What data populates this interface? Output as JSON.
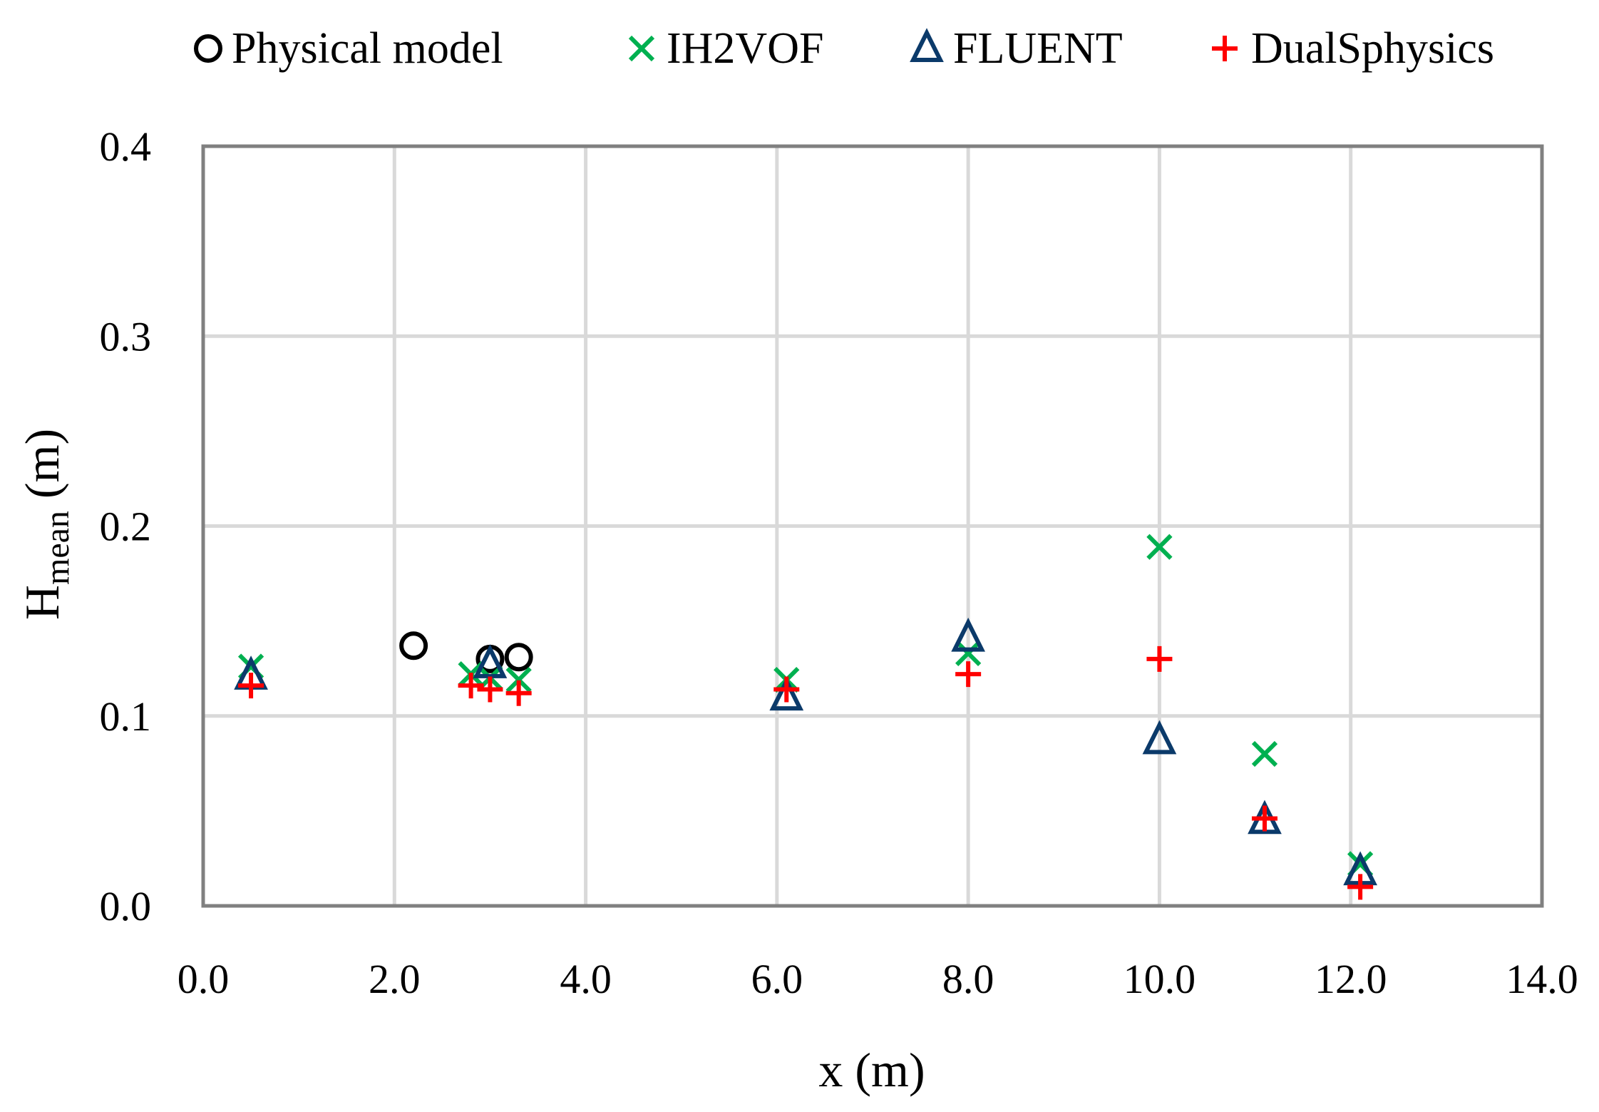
{
  "chart_data": {
    "type": "scatter",
    "title": "",
    "xlabel": "x (m)",
    "ylabel_main": "H",
    "ylabel_sub": "mean",
    "ylabel_unit": "(m)",
    "xlim": [
      0,
      14
    ],
    "ylim": [
      0,
      0.4
    ],
    "xticks": [
      0,
      2,
      4,
      6,
      8,
      10,
      12,
      14
    ],
    "yticks": [
      0,
      0.1,
      0.2,
      0.3,
      0.4
    ],
    "xtick_labels": [
      "0.0",
      "2.0",
      "4.0",
      "6.0",
      "8.0",
      "10.0",
      "12.0",
      "14.0"
    ],
    "ytick_labels": [
      "0.0",
      "0.1",
      "0.2",
      "0.3",
      "0.4"
    ],
    "grid": true,
    "legend_position": "top",
    "series": [
      {
        "name": "Physical model",
        "marker": "circle",
        "color": "#000000",
        "points": [
          {
            "x": 2.2,
            "y": 0.137
          },
          {
            "x": 3.0,
            "y": 0.13
          },
          {
            "x": 3.3,
            "y": 0.131
          }
        ]
      },
      {
        "name": "IH2VOF",
        "marker": "x",
        "color": "#00b050",
        "points": [
          {
            "x": 0.5,
            "y": 0.126
          },
          {
            "x": 2.8,
            "y": 0.122
          },
          {
            "x": 3.0,
            "y": 0.12
          },
          {
            "x": 3.3,
            "y": 0.119
          },
          {
            "x": 6.1,
            "y": 0.119
          },
          {
            "x": 8.0,
            "y": 0.133
          },
          {
            "x": 10.0,
            "y": 0.189
          },
          {
            "x": 11.1,
            "y": 0.08
          },
          {
            "x": 12.1,
            "y": 0.022
          }
        ]
      },
      {
        "name": "FLUENT",
        "marker": "triangle",
        "color": "#0b3a6a",
        "points": [
          {
            "x": 0.5,
            "y": 0.121
          },
          {
            "x": 3.0,
            "y": 0.127
          },
          {
            "x": 6.1,
            "y": 0.11
          },
          {
            "x": 8.0,
            "y": 0.141
          },
          {
            "x": 10.0,
            "y": 0.087
          },
          {
            "x": 11.1,
            "y": 0.045
          },
          {
            "x": 12.1,
            "y": 0.018
          }
        ]
      },
      {
        "name": "DualSphysics",
        "marker": "plus",
        "color": "#ff0000",
        "points": [
          {
            "x": 0.5,
            "y": 0.116
          },
          {
            "x": 2.8,
            "y": 0.116
          },
          {
            "x": 3.0,
            "y": 0.114
          },
          {
            "x": 3.3,
            "y": 0.112
          },
          {
            "x": 6.1,
            "y": 0.114
          },
          {
            "x": 8.0,
            "y": 0.122
          },
          {
            "x": 10.0,
            "y": 0.13
          },
          {
            "x": 11.1,
            "y": 0.046
          },
          {
            "x": 12.1,
            "y": 0.01
          }
        ]
      }
    ]
  }
}
